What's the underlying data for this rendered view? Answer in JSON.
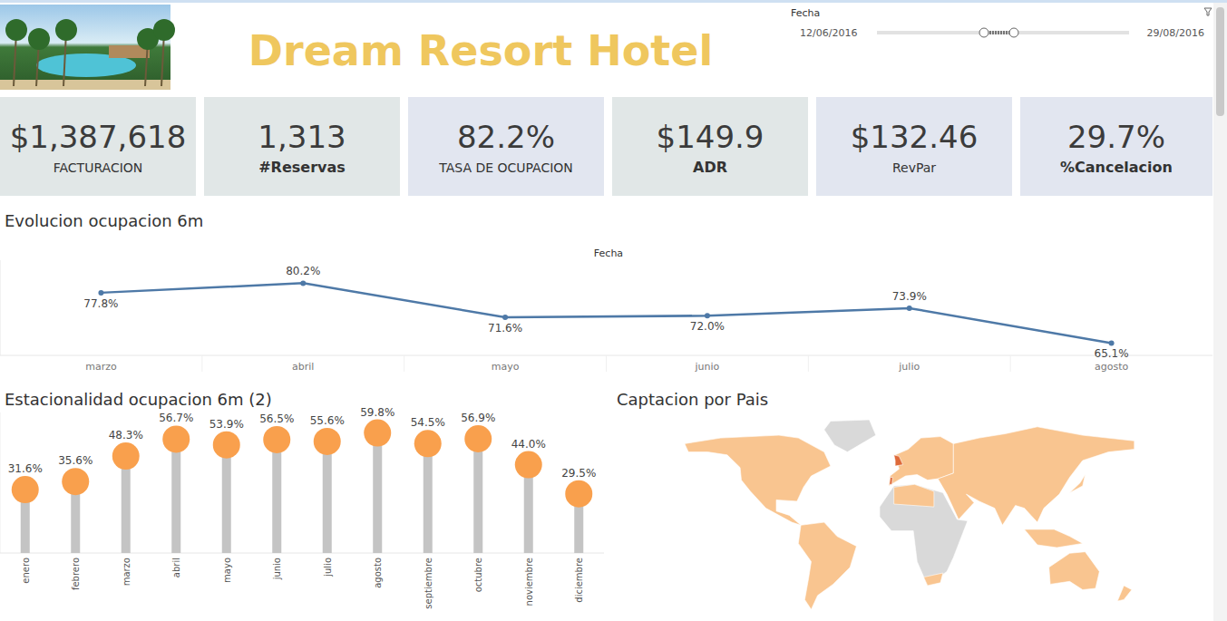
{
  "header": {
    "title": "Dream Resort Hotel"
  },
  "filter": {
    "label": "Fecha",
    "start": "12/06/2016",
    "end": "29/08/2016"
  },
  "kpis": [
    {
      "value": "$1,387,618",
      "label": "FACTURACION"
    },
    {
      "value": "1,313",
      "label": "#Reservas"
    },
    {
      "value": "82.2%",
      "label": "TASA DE OCUPACION"
    },
    {
      "value": "$149.9",
      "label": "ADR"
    },
    {
      "value": "$132.46",
      "label": "RevPar"
    },
    {
      "value": "29.7%",
      "label": "%Cancelacion"
    }
  ],
  "chart_data": [
    {
      "type": "line",
      "title": "Evolucion ocupacion 6m",
      "x_label": "Fecha",
      "categories": [
        "marzo",
        "abril",
        "mayo",
        "junio",
        "julio",
        "agosto"
      ],
      "values": [
        77.8,
        80.2,
        71.6,
        72.0,
        73.9,
        65.1
      ],
      "value_labels": [
        "77.8%",
        "80.2%",
        "71.6%",
        "72.0%",
        "73.9%",
        "65.1%"
      ],
      "color": "#4e79a7",
      "ylim": [
        62,
        86
      ],
      "data_labels": true,
      "tick_labels": "x",
      "marker": "circle"
    },
    {
      "type": "lollipop",
      "title": "Estacionalidad ocupacion 6m (2)",
      "categories": [
        "enero",
        "febrero",
        "marzo",
        "abril",
        "mayo",
        "junio",
        "julio",
        "agosto",
        "septiembre",
        "octubre",
        "noviembre",
        "diciembre"
      ],
      "values": [
        31.6,
        35.6,
        48.3,
        56.7,
        53.9,
        56.5,
        55.6,
        59.8,
        54.5,
        56.9,
        44.0,
        29.5
      ],
      "value_labels": [
        "31.6%",
        "35.6%",
        "48.3%",
        "56.7%",
        "53.9%",
        "56.5%",
        "55.6%",
        "59.8%",
        "54.5%",
        "56.9%",
        "44.0%",
        "29.5%"
      ],
      "color": "#f9a04d",
      "ylim": [
        0,
        70
      ],
      "data_labels": true,
      "tick_labels": "x",
      "marker": "circle"
    }
  ],
  "map": {
    "title": "Captacion por Pais"
  }
}
